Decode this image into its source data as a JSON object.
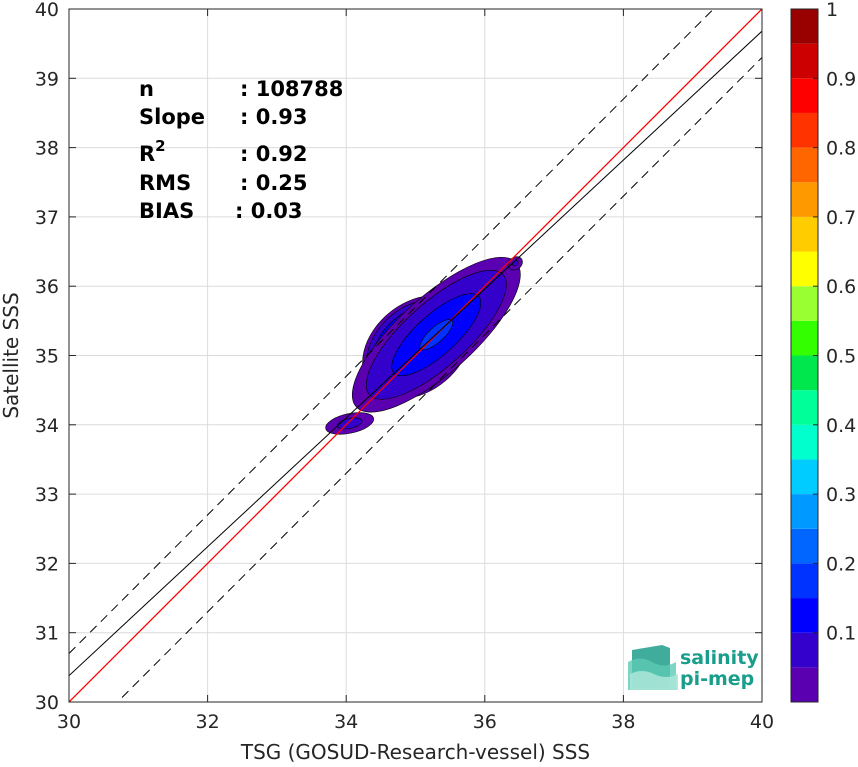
{
  "chart_data": {
    "type": "heatmap",
    "title": "",
    "xlabel": "TSG (GOSUD-Research-vessel) SSS",
    "ylabel": "Satellite SSS",
    "xlim": [
      30,
      40
    ],
    "ylim": [
      30,
      40
    ],
    "x_ticks": [
      "30",
      "32",
      "34",
      "36",
      "38",
      "40"
    ],
    "y_ticks": [
      "30",
      "31",
      "32",
      "33",
      "34",
      "35",
      "36",
      "37",
      "38",
      "39",
      "40"
    ],
    "grid": true,
    "stats": {
      "n_label": "n",
      "n_value": ": 108788",
      "slope_label": "Slope",
      "slope_value": ": 0.93",
      "r2_base": "R",
      "r2_sup": "2",
      "r2_value": ": 0.92",
      "rms_label": "RMS",
      "rms_value": ": 0.25",
      "bias_label": "BIAS",
      "bias_value": ": 0.03"
    },
    "lines": [
      {
        "kind": "identity",
        "color": "#ff0000",
        "slope": 1.0,
        "intercept": 0.0
      },
      {
        "kind": "regression",
        "color": "#000000",
        "slope": 0.93,
        "intercept": 2.48
      },
      {
        "kind": "upper-bound",
        "color": "#000000",
        "dashed": true,
        "slope": 1.0,
        "intercept": 0.7
      },
      {
        "kind": "lower-bound",
        "color": "#000000",
        "dashed": true,
        "slope": 1.0,
        "intercept": -0.7
      }
    ],
    "density_clusters": [
      {
        "x": 35.02,
        "y": 35.12,
        "sx": 0.33,
        "sy": 0.24,
        "rot": 40,
        "peak": 1.0
      },
      {
        "x": 35.7,
        "y": 35.62,
        "sx": 0.3,
        "sy": 0.17,
        "rot": 35,
        "peak": 0.55
      },
      {
        "x": 35.3,
        "y": 35.3,
        "sx": 0.85,
        "sy": 0.3,
        "rot": 42,
        "peak": 0.16
      },
      {
        "x": 34.05,
        "y": 34.02,
        "sx": 0.3,
        "sy": 0.12,
        "rot": 12,
        "peak": 0.06
      },
      {
        "x": 36.44,
        "y": 36.33,
        "sx": 0.1,
        "sy": 0.08,
        "rot": 35,
        "peak": 0.055
      }
    ],
    "colorbar": {
      "ticks": [
        "0.1",
        "0.2",
        "0.3",
        "0.4",
        "0.5",
        "0.6",
        "0.7",
        "0.8",
        "0.9",
        "1"
      ],
      "levels": [
        0,
        0.05,
        0.1,
        0.15,
        0.2,
        0.25,
        0.3,
        0.35,
        0.4,
        0.45,
        0.5,
        0.55,
        0.6,
        0.65,
        0.7,
        0.75,
        0.8,
        0.85,
        0.9,
        0.95,
        1.0
      ],
      "colors": [
        "#ffffff",
        "#5b00b0",
        "#3300cc",
        "#0000ff",
        "#0033ff",
        "#0066ff",
        "#0099ff",
        "#00ccff",
        "#00ffcc",
        "#00ff99",
        "#00e64d",
        "#33ff00",
        "#99ff33",
        "#ffff00",
        "#ffcc00",
        "#ff9900",
        "#ff6600",
        "#ff3300",
        "#ff0000",
        "#cc0000",
        "#990000"
      ]
    }
  },
  "logo": {
    "line1": "salinity",
    "line2": "pi-mep"
  }
}
